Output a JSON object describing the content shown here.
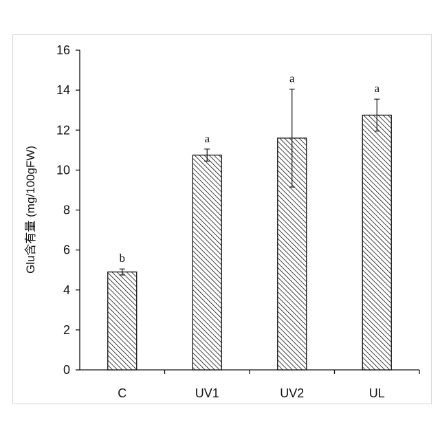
{
  "chart_data": {
    "type": "bar",
    "title": "",
    "xlabel": "",
    "ylabel": "Glu含有量 (mg/100gFW)",
    "categories": [
      "C",
      "UV1",
      "UV2",
      "UL"
    ],
    "values": [
      4.9,
      10.75,
      11.6,
      12.75
    ],
    "error": [
      0.15,
      0.3,
      2.45,
      0.8
    ],
    "significance": [
      "b",
      "a",
      "a",
      "a"
    ],
    "ylim": [
      0,
      16
    ],
    "yticks": [
      "0",
      "2",
      "4",
      "6",
      "8",
      "10",
      "12",
      "14",
      "16"
    ],
    "bar_fill": "hatched",
    "grid": false
  }
}
